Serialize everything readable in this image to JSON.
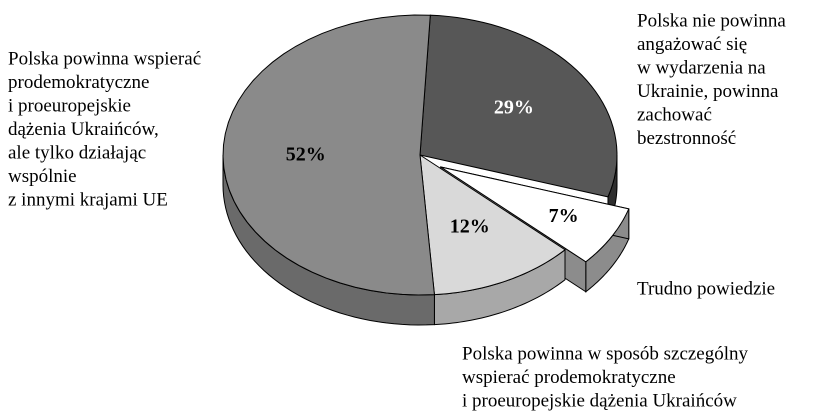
{
  "chart_data": {
    "type": "pie",
    "categories": [
      [
        "Polska nie powinna",
        "angażować się",
        "w wydarzenia na",
        "Ukrainie, powinna",
        "zachować",
        "bezstronność"
      ],
      [
        "Trudno powiedzie"
      ],
      [
        "Polska powinna w sposób szczególny",
        "wspierać prodemokratyczne",
        "i proeuropejskie dążenia Ukraińców"
      ],
      [
        "Polska powinna wspierać",
        "prodemokratyczne",
        "i proeuropejskie",
        "dążenia Ukraińców,",
        "ale tylko działając",
        "wspólnie",
        "z innymi krajami UE"
      ]
    ],
    "values": [
      29,
      7,
      12,
      52
    ],
    "value_labels": [
      "29%",
      "7%",
      "12%",
      "52%"
    ],
    "colors": [
      "#575757",
      "#ffffff",
      "#d9d9d9",
      "#8a8a8a"
    ],
    "side_colors": [
      "#2e2e2e",
      "#8c8c8c",
      "#a8a8a8",
      "#6a6a6a"
    ],
    "value_label_colors": [
      "#ffffff",
      "#000000",
      "#000000",
      "#000000"
    ],
    "exploded": [
      false,
      true,
      false,
      false
    ]
  }
}
